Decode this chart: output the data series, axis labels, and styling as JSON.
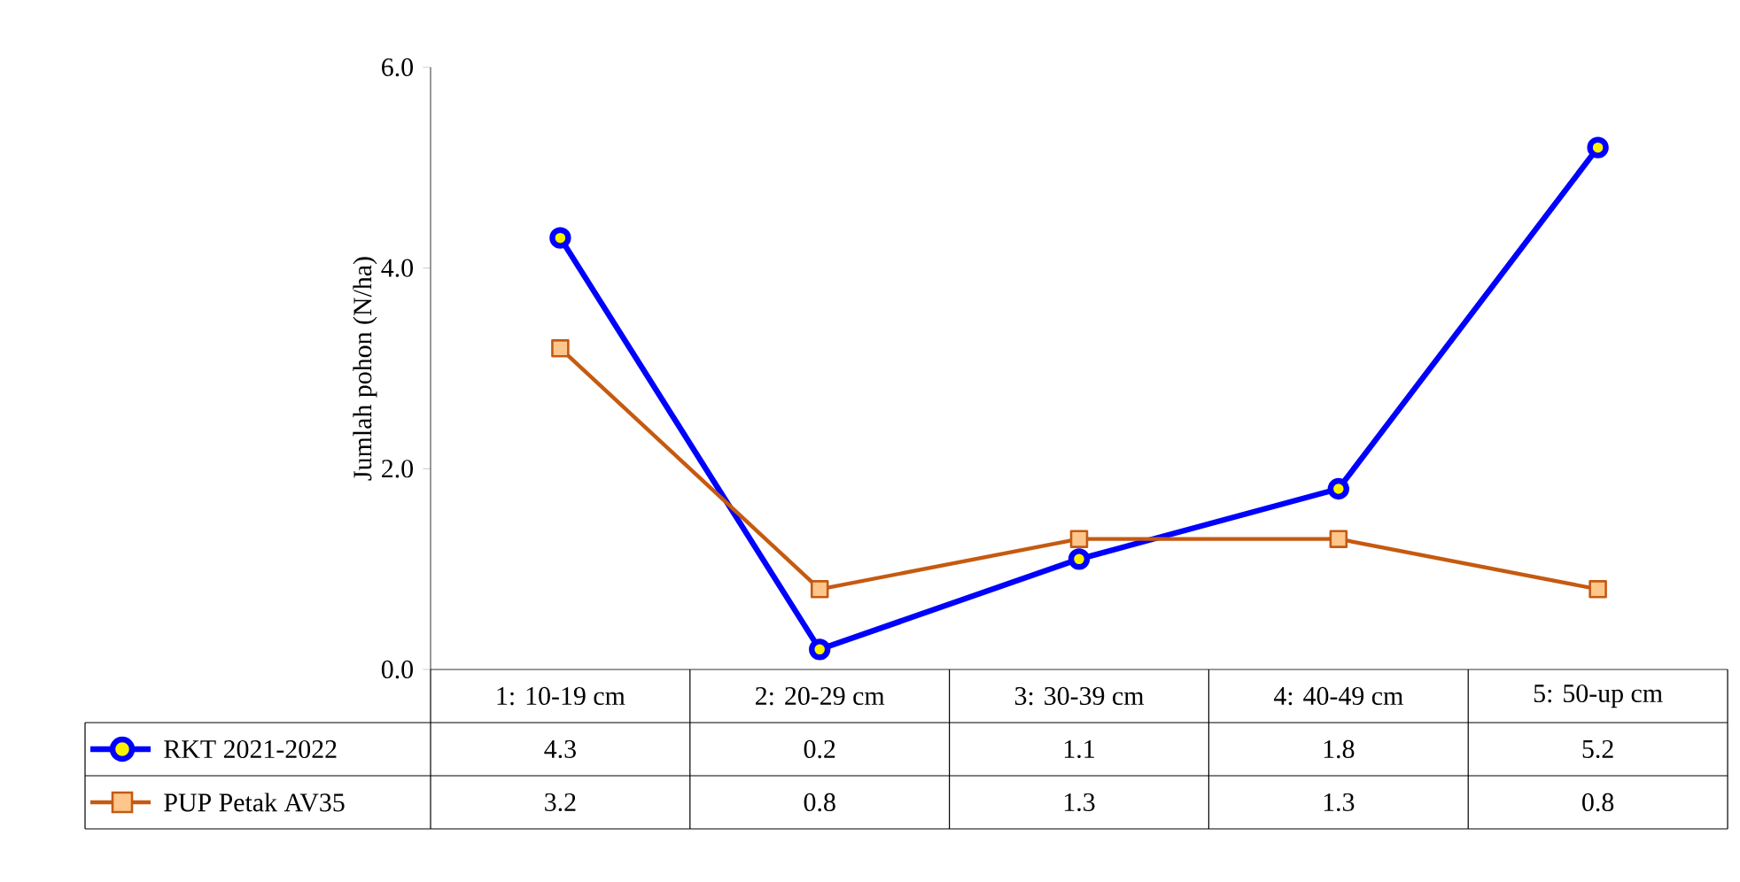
{
  "chart_data": {
    "type": "line",
    "ylabel": "Jumlah pohon (N/ha)",
    "categories": [
      "1: 10-19 cm",
      "2: 20-29 cm",
      "3: 30-39 cm",
      "4: 40-49 cm",
      "5: 50-up cm"
    ],
    "series": [
      {
        "name": "RKT 2021-2022",
        "color": "#0000ff",
        "marker": "circle",
        "values": [
          4.3,
          0.2,
          1.1,
          1.8,
          5.2
        ]
      },
      {
        "name": "PUP Petak AV35",
        "color": "#c55a11",
        "marker": "square",
        "values": [
          3.2,
          0.8,
          1.3,
          1.3,
          0.8
        ]
      }
    ],
    "ylim": [
      0,
      6
    ],
    "yticks": [
      {
        "value": 0,
        "label": "0.0"
      },
      {
        "value": 2,
        "label": "2.0"
      },
      {
        "value": 4,
        "label": "4.0"
      },
      {
        "value": 6,
        "label": "6.0"
      }
    ],
    "line_style": "solid",
    "data_labels": true,
    "legend": "bottom left"
  }
}
